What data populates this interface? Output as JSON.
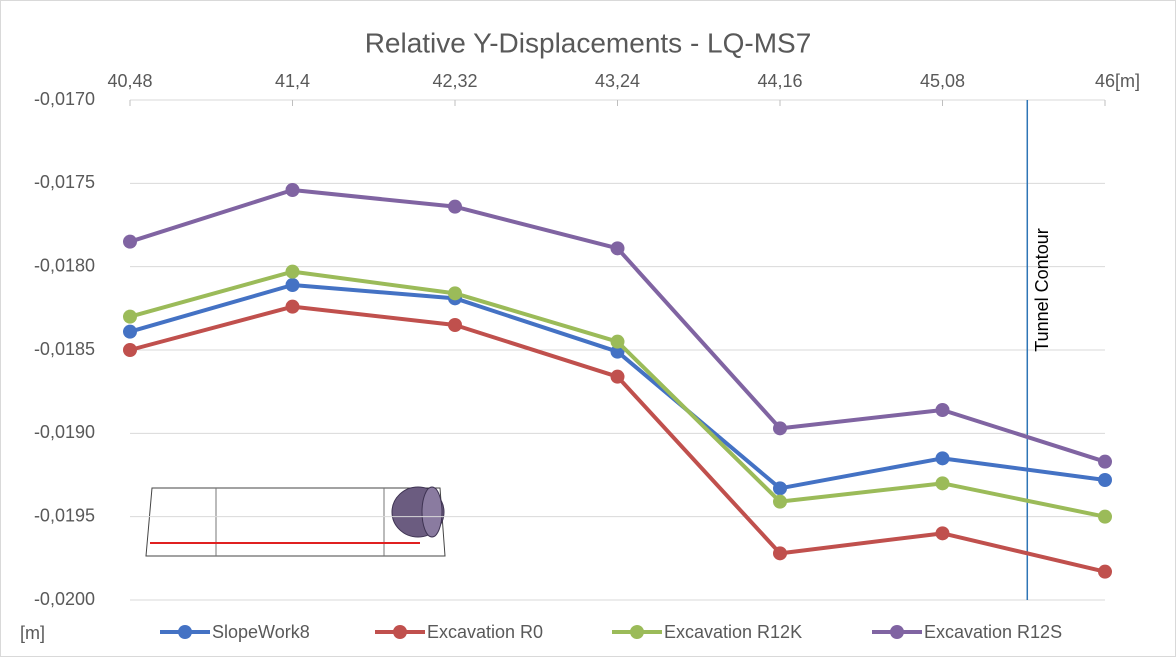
{
  "chart_data": {
    "type": "line",
    "title": "Relative Y-Displacements - LQ-MS7",
    "x_unit": "[m]",
    "y_unit": "[m]",
    "x": [
      40.48,
      41.4,
      42.32,
      43.24,
      44.16,
      45.08,
      46
    ],
    "xlim": [
      40.48,
      46
    ],
    "xticks": [
      {
        "value": 40.48,
        "label": "40,48"
      },
      {
        "value": 41.4,
        "label": "41,4"
      },
      {
        "value": 42.32,
        "label": "42,32"
      },
      {
        "value": 43.24,
        "label": "43,24"
      },
      {
        "value": 44.16,
        "label": "44,16"
      },
      {
        "value": 45.08,
        "label": "45,08"
      },
      46
    ],
    "ylim": [
      -0.02,
      -0.017
    ],
    "yticks": [
      {
        "value": -0.017,
        "label": "-0,0170"
      },
      {
        "value": -0.0175,
        "label": "-0,0175"
      },
      {
        "value": -0.018,
        "label": "-0,0180"
      },
      {
        "value": -0.0185,
        "label": "-0,0185"
      },
      {
        "value": -0.019,
        "label": "-0,0190"
      },
      {
        "value": -0.0195,
        "label": "-0,0195"
      },
      {
        "value": -0.02,
        "label": "-0,0200"
      }
    ],
    "grid": true,
    "legend": "bottom",
    "series": [
      {
        "name": "SlopeWork8",
        "color": "#4472c4",
        "values": [
          -0.01839,
          -0.01811,
          -0.01819,
          -0.01851,
          -0.01933,
          -0.01915,
          -0.01928
        ]
      },
      {
        "name": "Excavation R0",
        "color": "#c0504d",
        "values": [
          -0.0185,
          -0.01824,
          -0.01835,
          -0.01866,
          -0.01972,
          -0.0196,
          -0.01983
        ]
      },
      {
        "name": "Excavation R12K",
        "color": "#9bbb59",
        "values": [
          -0.0183,
          -0.01803,
          -0.01816,
          -0.01845,
          -0.01941,
          -0.0193,
          -0.0195
        ]
      },
      {
        "name": "Excavation R12S",
        "color": "#8064a2",
        "values": [
          -0.01785,
          -0.01754,
          -0.01764,
          -0.01789,
          -0.01897,
          -0.01886,
          -0.01917
        ]
      }
    ],
    "annotation": {
      "text": "Tunnel Contour",
      "x": 45.56,
      "color": "#2e75b6"
    }
  }
}
